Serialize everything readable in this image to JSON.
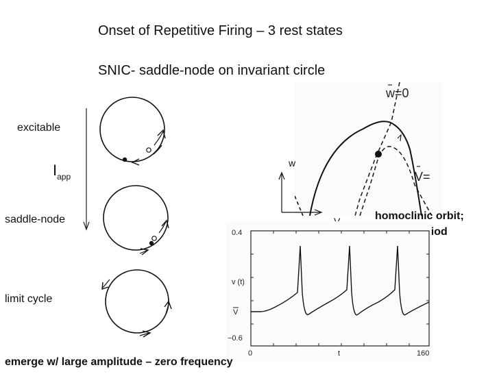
{
  "slide": {
    "title": "Onset of Repetitive Firing – 3 rest states",
    "subtitle": "SNIC- saddle-node on invariant circle",
    "footer": "emerge w/ large amplitude – zero frequency"
  },
  "states": {
    "excitable": "excitable",
    "saddle_node": "saddle-node",
    "limit_cycle": "limit cycle"
  },
  "iapp": {
    "main": "I",
    "sub": "app"
  },
  "phase_plane": {
    "w_nullcline": "w=0",
    "v_nullcline": "V=",
    "axis_w": "w",
    "axis_v": "V"
  },
  "annotation": {
    "line1": "homoclinic orbit;",
    "line2": "infinite period"
  },
  "trace": {
    "ylabel": "v (t)",
    "vbar": "V",
    "y_top": "0.4",
    "y_bottom": "−0.6",
    "x_left": "0",
    "x_mid": "t",
    "x_right": "160"
  }
}
